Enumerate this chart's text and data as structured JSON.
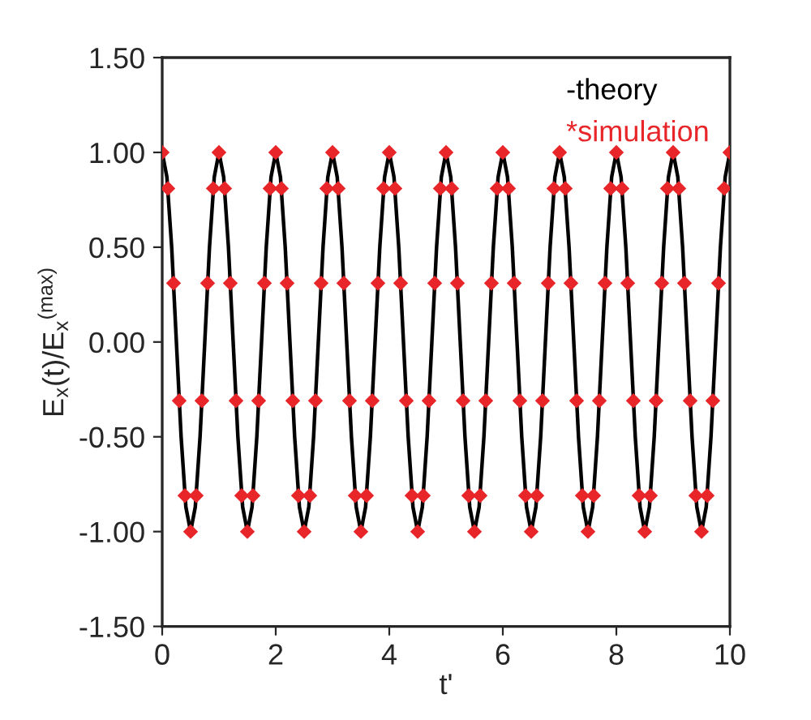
{
  "chart_data": {
    "type": "line",
    "xlabel": "t'",
    "ylabel": "E$_{x}$(t)/E$_{x}$$^{(max)}$",
    "xlim": [
      0,
      10
    ],
    "xticks": [
      0,
      2,
      4,
      6,
      8,
      10
    ],
    "ylim": [
      -1.5,
      1.5
    ],
    "yticks": [
      {
        "value": -1.5,
        "label": "-1.50"
      },
      {
        "value": -1.0,
        "label": "-1.00"
      },
      {
        "value": -0.5,
        "label": "-0.50"
      },
      {
        "value": 0,
        "label": "0.00"
      },
      {
        "value": 0.5,
        "label": "0.50"
      },
      {
        "value": 1.0,
        "label": "1.00"
      },
      {
        "value": 1.5,
        "label": "1.50"
      }
    ],
    "grid": false,
    "legend": "top right",
    "series": [
      {
        "name": "-theory",
        "color": "#000000",
        "marker": "none",
        "line_style": "solid",
        "x": [
          0,
          0.083,
          0.167,
          0.25,
          0.333,
          0.417,
          0.5,
          0.583,
          0.667,
          0.75,
          0.833,
          0.917,
          1,
          1.083,
          1.167,
          1.25,
          1.333,
          1.417,
          1.5,
          1.583,
          1.667,
          1.75,
          1.833,
          1.917,
          2,
          2.083,
          2.167,
          2.25,
          2.333,
          2.417,
          2.5,
          2.583,
          2.667,
          2.75,
          2.833,
          2.917,
          3,
          3.083,
          3.167,
          3.25,
          3.333,
          3.417,
          3.5,
          3.583,
          3.667,
          3.75,
          3.833,
          3.917,
          4,
          4.083,
          4.167,
          4.25,
          4.333,
          4.417,
          4.5,
          4.583,
          4.667,
          4.75,
          4.833,
          4.917,
          5,
          5.083,
          5.167,
          5.25,
          5.333,
          5.417,
          5.5,
          5.583,
          5.667,
          5.75,
          5.833,
          5.917,
          6,
          6.083,
          6.167,
          6.25,
          6.333,
          6.417,
          6.5,
          6.583,
          6.667,
          6.75,
          6.833,
          6.917,
          7,
          7.083,
          7.167,
          7.25,
          7.333,
          7.417,
          7.5,
          7.583,
          7.667,
          7.75,
          7.833,
          7.917,
          8,
          8.083,
          8.167,
          8.25,
          8.333,
          8.417,
          8.5,
          8.583,
          8.667,
          8.75,
          8.833,
          8.917,
          9,
          9.083,
          9.167,
          9.25,
          9.333,
          9.417,
          9.5,
          9.583,
          9.667,
          9.75,
          9.833,
          9.917,
          10
        ],
        "values": [
          1,
          0.87,
          0.5,
          0,
          -0.5,
          -0.87,
          -1,
          -0.87,
          -0.5,
          0,
          0.5,
          0.87,
          1,
          0.87,
          0.5,
          0,
          -0.5,
          -0.87,
          -1,
          -0.87,
          -0.5,
          0,
          0.5,
          0.87,
          1,
          0.87,
          0.5,
          0,
          -0.5,
          -0.87,
          -1,
          -0.87,
          -0.5,
          0,
          0.5,
          0.87,
          1,
          0.87,
          0.5,
          0,
          -0.5,
          -0.87,
          -1,
          -0.87,
          -0.5,
          0,
          0.5,
          0.87,
          1,
          0.87,
          0.5,
          0,
          -0.5,
          -0.87,
          -1,
          -0.87,
          -0.5,
          0,
          0.5,
          0.87,
          1,
          0.87,
          0.5,
          0,
          -0.5,
          -0.87,
          -1,
          -0.87,
          -0.5,
          0,
          0.5,
          0.87,
          1,
          0.87,
          0.5,
          0,
          -0.5,
          -0.87,
          -1,
          -0.87,
          -0.5,
          0,
          0.5,
          0.87,
          1,
          0.87,
          0.5,
          0,
          -0.5,
          -0.87,
          -1,
          -0.87,
          -0.5,
          0,
          0.5,
          0.87,
          1,
          0.87,
          0.5,
          0,
          -0.5,
          -0.87,
          -1,
          -0.87,
          -0.5,
          0,
          0.5,
          0.87,
          1,
          0.87,
          0.5,
          0,
          -0.5,
          -0.87,
          -1,
          -0.87,
          -0.5,
          0,
          0.5,
          0.87,
          1
        ]
      },
      {
        "name": "*simulation",
        "type": "scatter",
        "color": "#e8262a",
        "marker": "diamond",
        "x": [
          0,
          0.1,
          0.2,
          0.3,
          0.4,
          0.5,
          0.6,
          0.7,
          0.8,
          0.9,
          1,
          1.1,
          1.2,
          1.3,
          1.4,
          1.5,
          1.6,
          1.7,
          1.8,
          1.9,
          2,
          2.1,
          2.2,
          2.3,
          2.4,
          2.5,
          2.6,
          2.7,
          2.8,
          2.9,
          3,
          3.1,
          3.2,
          3.3,
          3.4,
          3.5,
          3.6,
          3.7,
          3.8,
          3.9,
          4,
          4.1,
          4.2,
          4.3,
          4.4,
          4.5,
          4.6,
          4.7,
          4.8,
          4.9,
          5,
          5.1,
          5.2,
          5.3,
          5.4,
          5.5,
          5.6,
          5.7,
          5.8,
          5.9,
          6,
          6.1,
          6.2,
          6.3,
          6.4,
          6.5,
          6.6,
          6.7,
          6.8,
          6.9,
          7,
          7.1,
          7.2,
          7.3,
          7.4,
          7.5,
          7.6,
          7.7,
          7.8,
          7.9,
          8,
          8.1,
          8.2,
          8.3,
          8.4,
          8.5,
          8.6,
          8.7,
          8.8,
          8.9,
          9,
          9.1,
          9.2,
          9.3,
          9.4,
          9.5,
          9.6,
          9.7,
          9.8,
          9.9,
          10
        ],
        "values": [
          1,
          0.81,
          0.31,
          -0.31,
          -0.81,
          -1,
          -0.81,
          -0.31,
          0.31,
          0.81,
          1,
          0.81,
          0.31,
          -0.31,
          -0.81,
          -1,
          -0.81,
          -0.31,
          0.31,
          0.81,
          1,
          0.81,
          0.31,
          -0.31,
          -0.81,
          -1,
          -0.81,
          -0.31,
          0.31,
          0.81,
          1,
          0.81,
          0.31,
          -0.31,
          -0.81,
          -1,
          -0.81,
          -0.31,
          0.31,
          0.81,
          1,
          0.81,
          0.31,
          -0.31,
          -0.81,
          -1,
          -0.81,
          -0.31,
          0.31,
          0.81,
          1,
          0.81,
          0.31,
          -0.31,
          -0.81,
          -1,
          -0.81,
          -0.31,
          0.31,
          0.81,
          1,
          0.81,
          0.31,
          -0.31,
          -0.81,
          -1,
          -0.81,
          -0.31,
          0.31,
          0.81,
          1,
          0.81,
          0.31,
          -0.31,
          -0.81,
          -1,
          -0.81,
          -0.31,
          0.31,
          0.81,
          1,
          0.81,
          0.31,
          -0.31,
          -0.81,
          -1,
          -0.81,
          -0.31,
          0.31,
          0.81,
          1,
          0.81,
          0.31,
          -0.31,
          -0.81,
          -1,
          -0.81,
          -0.31,
          0.31,
          0.81,
          1
        ]
      }
    ]
  }
}
